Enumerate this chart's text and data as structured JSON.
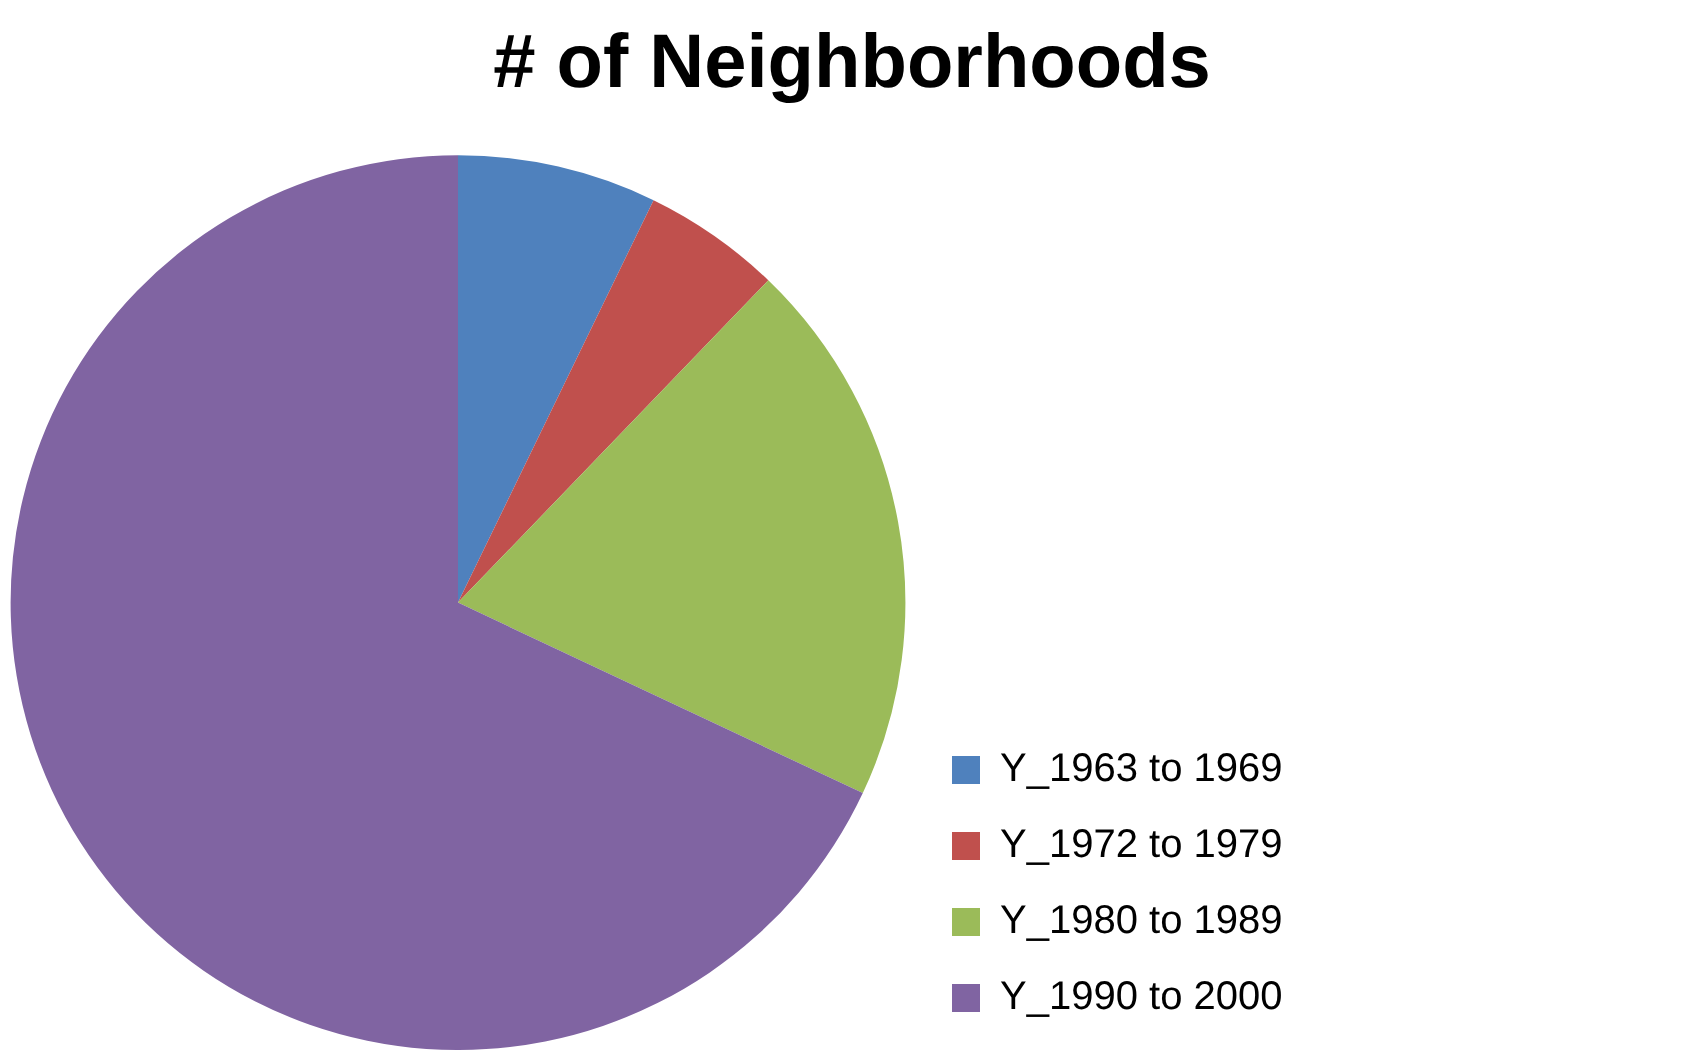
{
  "chart_data": {
    "type": "pie",
    "title": "# of Neighborhoods",
    "categories": [
      "Y_1963 to 1969",
      "Y_1972 to 1979",
      "Y_1980 to 1989",
      "Y_1990 to 2000"
    ],
    "values": [
      7.2,
      5.0,
      19.8,
      68.0
    ],
    "colors": [
      "#4f81bd",
      "#c0504d",
      "#9bbb59",
      "#8064a2"
    ],
    "legend": "right"
  }
}
